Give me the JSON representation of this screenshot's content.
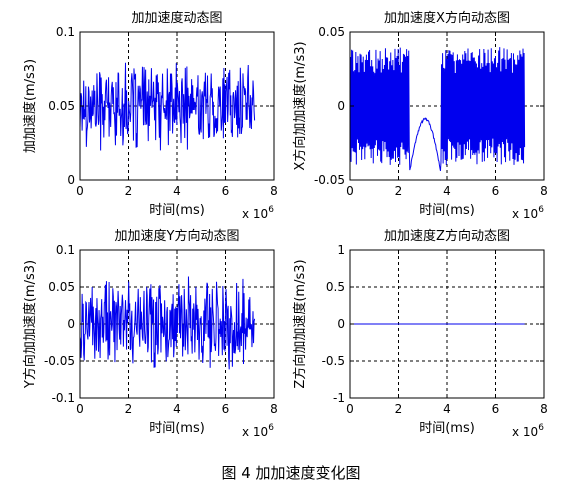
{
  "figure_caption": "图 4  加加速度变化图",
  "colors": {
    "series": "#0000ee",
    "axis": "#000000",
    "grid": "#000000"
  },
  "chart_data": [
    {
      "type": "line",
      "title": "加加速度动态图",
      "xlabel": "时间(ms)",
      "ylabel": "加加速度(m/s3)",
      "x_multiplier": "x 10^6",
      "xlim": [
        0,
        8
      ],
      "ylim": [
        0,
        0.1
      ],
      "xticks": [
        "0",
        "2",
        "4",
        "6",
        "8"
      ],
      "yticks": [
        "0",
        "0.05",
        "0.1"
      ],
      "grid": true,
      "pattern": "noise",
      "x_end": 7.2,
      "baseline": 0.05,
      "amplitude": 0.032
    },
    {
      "type": "line",
      "title": "加加速度X方向动态图",
      "xlabel": "时间(ms)",
      "ylabel": "X方向加加速度(m/s3)",
      "x_multiplier": "x 10^6",
      "xlim": [
        0,
        8
      ],
      "ylim": [
        -0.05,
        0.05
      ],
      "xticks": [
        "0",
        "2",
        "4",
        "6",
        "8"
      ],
      "yticks": [
        "-0.05",
        "0",
        "0.05"
      ],
      "grid": true,
      "pattern": "x-dir",
      "x_end": 7.2,
      "baseline": 0,
      "amplitude": 0.04
    },
    {
      "type": "line",
      "title": "加加速度Y方向动态图",
      "xlabel": "时间(ms)",
      "ylabel": "Y方向加加速度(m/s3)",
      "x_multiplier": "x 10^6",
      "xlim": [
        0,
        8
      ],
      "ylim": [
        -0.1,
        0.1
      ],
      "xticks": [
        "0",
        "2",
        "4",
        "6",
        "8"
      ],
      "yticks": [
        "-0.1",
        "-0.05",
        "0",
        "0.05",
        "0.1"
      ],
      "grid": true,
      "pattern": "noise",
      "x_end": 7.2,
      "baseline": 0,
      "amplitude": 0.07
    },
    {
      "type": "line",
      "title": "加加速度Z方向动态图",
      "xlabel": "时间(ms)",
      "ylabel": "Z方向加加速度(m/s3)",
      "x_multiplier": "x 10^6",
      "xlim": [
        0,
        8
      ],
      "ylim": [
        -1,
        1
      ],
      "xticks": [
        "0",
        "2",
        "4",
        "6",
        "8"
      ],
      "yticks": [
        "-1",
        "-0.5",
        "0",
        "0.5",
        "1"
      ],
      "grid": true,
      "pattern": "flat",
      "x_end": 7.2,
      "baseline": 0,
      "amplitude": 0
    }
  ]
}
